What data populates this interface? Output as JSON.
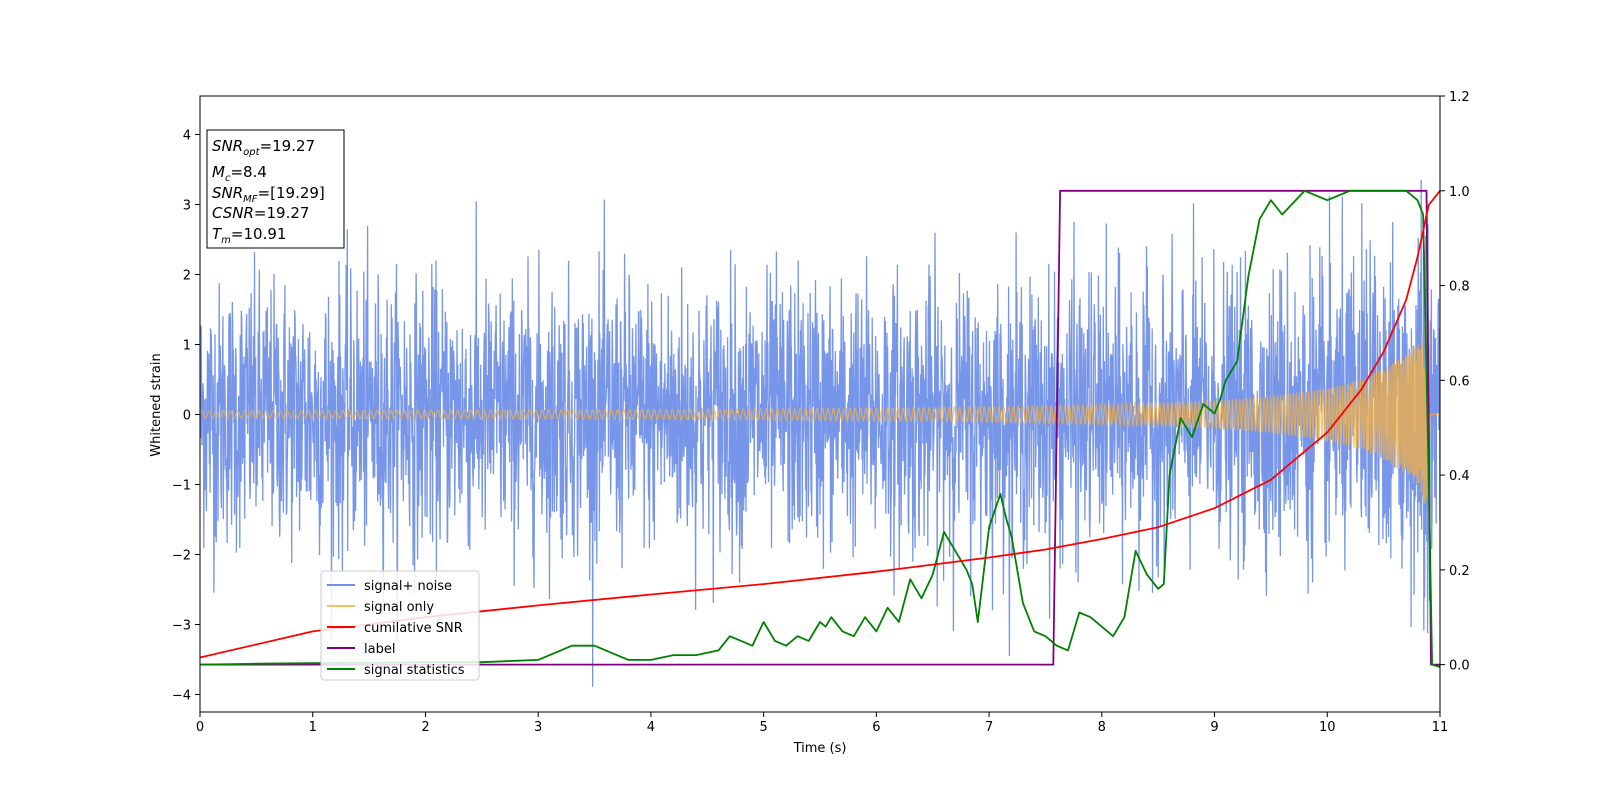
{
  "chart_data": {
    "type": "line",
    "xlabel": "Time (s)",
    "ylabel": "Whitened strain",
    "xlim": [
      0,
      11
    ],
    "ylim_left": [
      -4.25,
      4.55
    ],
    "ylim_right": [
      -0.1,
      1.2
    ],
    "x_ticks": [
      "0",
      "1",
      "2",
      "3",
      "4",
      "5",
      "6",
      "7",
      "8",
      "9",
      "10",
      "11"
    ],
    "y_ticks_left": [
      "−4",
      "−3",
      "−2",
      "−1",
      "0",
      "1",
      "2",
      "3",
      "4"
    ],
    "y_ticks_right": [
      "0.0",
      "0.2",
      "0.4",
      "0.6",
      "0.8",
      "1.0",
      "1.2"
    ],
    "grid": false,
    "legend_position": "lower-left",
    "info_box": {
      "snr_opt": "19.27",
      "mc": "8.4",
      "snr_mf": "[19.29]",
      "csnr": "19.27",
      "tm": "10.91"
    },
    "series": [
      {
        "name": "signal+ noise",
        "axis": "left",
        "color": "#7090e8",
        "description_values": "white noise about 0, std ~1, peaks to ±4; envelope widens near 10.9 s"
      },
      {
        "name": "signal only",
        "axis": "left",
        "color": "#f5b041",
        "envelope": {
          "x": [
            0,
            2,
            4,
            6,
            7,
            8,
            9,
            9.5,
            10,
            10.3,
            10.5,
            10.7,
            10.8,
            10.9,
            10.91,
            11
          ],
          "amp": [
            0.05,
            0.06,
            0.07,
            0.09,
            0.11,
            0.14,
            0.2,
            0.26,
            0.38,
            0.5,
            0.65,
            0.85,
            1.05,
            1.4,
            0,
            0
          ]
        }
      },
      {
        "name": "cumilative SNR",
        "axis": "right",
        "color": "#ff0000",
        "x": [
          0,
          1,
          2,
          3,
          4,
          5,
          6,
          7,
          7.5,
          8,
          8.5,
          9,
          9.5,
          10,
          10.3,
          10.5,
          10.7,
          10.8,
          10.9,
          11
        ],
        "y": [
          0.015,
          0.07,
          0.1,
          0.125,
          0.148,
          0.17,
          0.196,
          0.226,
          0.243,
          0.265,
          0.29,
          0.33,
          0.39,
          0.49,
          0.58,
          0.66,
          0.77,
          0.86,
          0.97,
          1.0
        ]
      },
      {
        "name": "label",
        "axis": "right",
        "color": "#800080",
        "x": [
          0,
          7.57,
          7.63,
          10.88,
          10.92,
          11
        ],
        "y": [
          0.0,
          0.0,
          1.0,
          1.0,
          0.0,
          0.0
        ]
      },
      {
        "name": "signal statistics",
        "axis": "right",
        "color": "#008000",
        "x": [
          0,
          0.5,
          1,
          1.5,
          2,
          2.5,
          2.8,
          3.0,
          3.2,
          3.3,
          3.5,
          3.6,
          3.8,
          4.0,
          4.2,
          4.4,
          4.6,
          4.7,
          4.8,
          4.9,
          5.0,
          5.1,
          5.2,
          5.3,
          5.4,
          5.5,
          5.55,
          5.6,
          5.7,
          5.8,
          5.9,
          6.0,
          6.1,
          6.2,
          6.3,
          6.4,
          6.5,
          6.6,
          6.7,
          6.8,
          6.85,
          6.9,
          7.0,
          7.1,
          7.15,
          7.2,
          7.3,
          7.4,
          7.5,
          7.6,
          7.7,
          7.8,
          7.9,
          8.0,
          8.1,
          8.2,
          8.3,
          8.4,
          8.5,
          8.55,
          8.6,
          8.7,
          8.8,
          8.9,
          9.0,
          9.05,
          9.1,
          9.2,
          9.3,
          9.4,
          9.5,
          9.6,
          9.8,
          10.0,
          10.2,
          10.5,
          10.7,
          10.8,
          10.85,
          10.9,
          10.93,
          11
        ],
        "y": [
          0.0,
          0.002,
          0.003,
          0.004,
          0.005,
          0.005,
          0.008,
          0.01,
          0.03,
          0.04,
          0.04,
          0.03,
          0.01,
          0.01,
          0.02,
          0.02,
          0.03,
          0.06,
          0.05,
          0.04,
          0.09,
          0.05,
          0.04,
          0.06,
          0.05,
          0.09,
          0.08,
          0.1,
          0.07,
          0.06,
          0.1,
          0.07,
          0.12,
          0.09,
          0.18,
          0.14,
          0.19,
          0.28,
          0.24,
          0.2,
          0.17,
          0.09,
          0.29,
          0.36,
          0.31,
          0.27,
          0.13,
          0.07,
          0.06,
          0.04,
          0.03,
          0.11,
          0.1,
          0.08,
          0.06,
          0.1,
          0.24,
          0.19,
          0.16,
          0.17,
          0.4,
          0.52,
          0.48,
          0.55,
          0.53,
          0.56,
          0.6,
          0.64,
          0.82,
          0.94,
          0.98,
          0.95,
          1.0,
          0.98,
          1.0,
          1.0,
          1.0,
          0.98,
          0.95,
          0.4,
          0.0,
          -0.005
        ]
      }
    ]
  }
}
